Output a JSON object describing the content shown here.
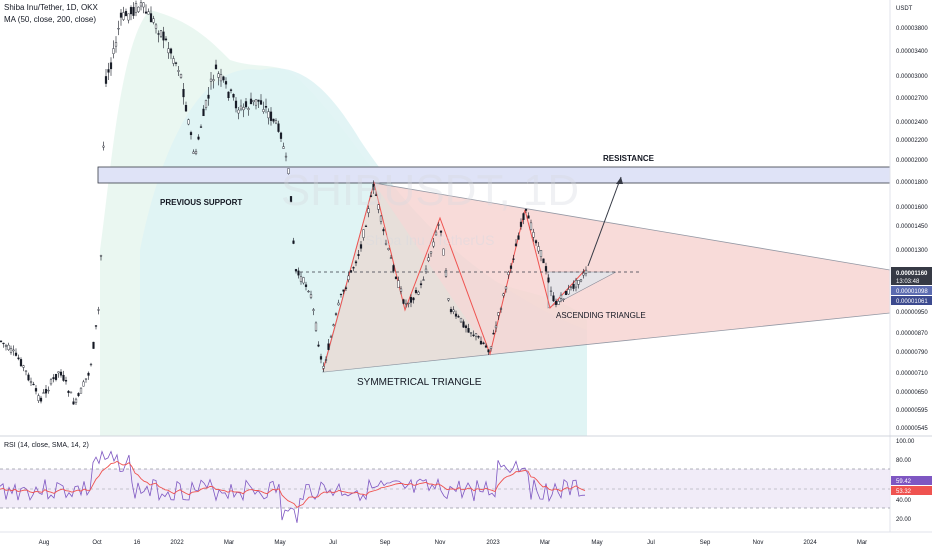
{
  "header": {
    "symbol_line": "Shiba Inu/Tether, 1D, OKX",
    "ma_line": "MA (50, close, 200, close)",
    "watermark": "SHIBUSDT, 1D",
    "watermark_sub": "Shiba Inu / TetherUS"
  },
  "price_axis": {
    "currency": "USDT",
    "ticks": [
      "0.00003800",
      "0.00003400",
      "0.00003000",
      "0.00002700",
      "0.00002400",
      "0.00002200",
      "0.00002000",
      "0.00001800",
      "0.00001600",
      "0.00001450",
      "0.00001300",
      "0.00001160",
      "0.00001098",
      "0.00001061",
      "0.00000950",
      "0.00000870",
      "0.00000790",
      "0.00000710",
      "0.00000650",
      "0.00000595",
      "0.00000545"
    ],
    "current_price": "0.00001160",
    "countdown": "13:03:48",
    "ma1_value": "0.00001098",
    "ma2_value": "0.00001061"
  },
  "annotations": {
    "resistance": "RESISTANCE",
    "previous_support": "PREVIOUS SUPPORT",
    "symmetrical_triangle": "SYMMETRICAL TRIANGLE",
    "ascending_triangle": "ASCENDING TRIANGLE"
  },
  "rsi": {
    "label": "RSI (14, close, SMA, 14, 2)",
    "ticks": [
      "100.00",
      "80.00",
      "40.00",
      "20.00"
    ],
    "value1": "59.42",
    "value2": "53.32"
  },
  "time_axis": {
    "labels": [
      "Aug",
      "Oct",
      "16",
      "2022",
      "Mar",
      "May",
      "Jul",
      "Sep",
      "Nov",
      "2023",
      "Mar",
      "May",
      "Jul",
      "Sep",
      "Nov",
      "2024",
      "Mar"
    ]
  },
  "colors": {
    "up": "#26a69a",
    "down": "#ef5350",
    "candle": "#131722",
    "rsi_line": "#7e57c2",
    "rsi_sma": "#ef5350",
    "triangle_fill": "#f7c5c2",
    "resistance_band": "#dfe3f7",
    "price_tag": "#363a45"
  }
}
